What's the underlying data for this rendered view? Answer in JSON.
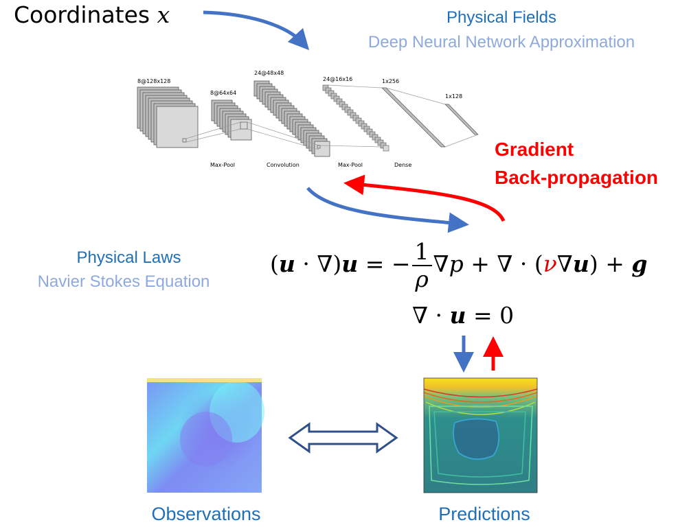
{
  "coordinates": {
    "label": "Coordinates ",
    "variable": "x"
  },
  "physical_fields": {
    "title": "Physical Fields",
    "subtitle": "Deep Neural Network Approximation"
  },
  "gradient": {
    "line1": "Gradient",
    "line2": "Back-propagation"
  },
  "physical_laws": {
    "title": "Physical Laws",
    "subtitle": "Navier Stokes Equation"
  },
  "cnn": {
    "dims": [
      "8@128x128",
      "8@64x64",
      "24@48x48",
      "24@16x16",
      "1x256",
      "1x128"
    ],
    "ops": [
      "Max-Pool",
      "Convolution",
      "Max-Pool",
      "Dense"
    ]
  },
  "equation": {
    "lhs_open": "(",
    "u1": "u",
    "dot1": " · ∇)",
    "u2": "u",
    "equals_minus": " = −",
    "frac_num": "1",
    "frac_den": "ρ",
    "grad_p": "∇",
    "p": "p",
    "plus_div": " + ∇ · (",
    "nu": "ν",
    "nabla": "∇",
    "u3": "u",
    "close_plus": ") + ",
    "g": "g",
    "cont_nabla": "∇ · ",
    "cont_u": "u",
    "cont_rest": " = 0"
  },
  "labels": {
    "observations": "Observations",
    "predictions": "Predictions"
  },
  "colors": {
    "blue_arrow": "#4472c4",
    "red_arrow": "#ff0000",
    "title_blue": "#1f6fb8",
    "sub_blue": "#8ea9db"
  }
}
